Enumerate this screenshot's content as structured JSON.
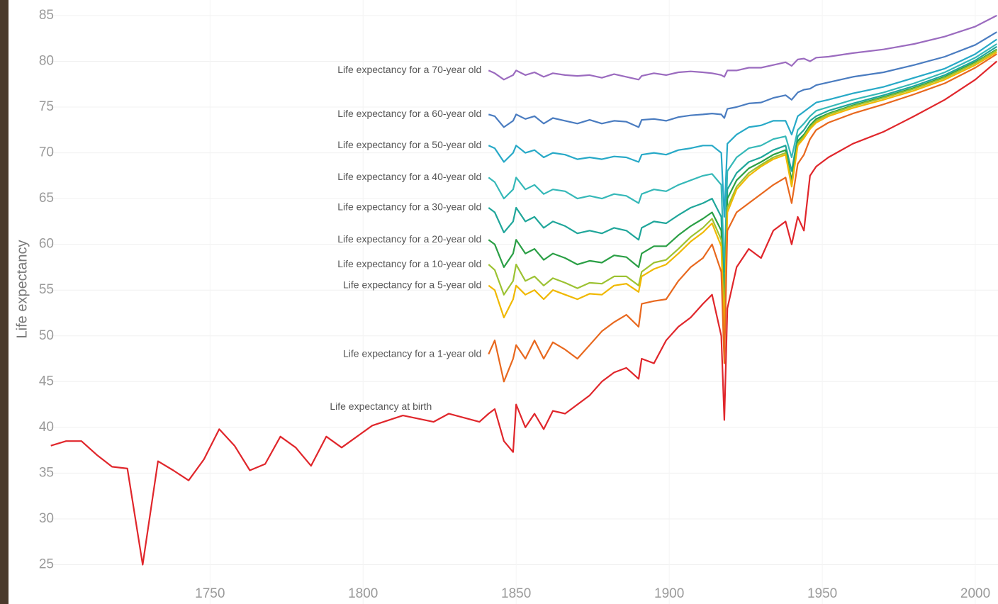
{
  "chart_data": {
    "type": "line",
    "y_label": "Life expectancy",
    "x": [
      1698,
      1703,
      1708,
      1713,
      1718,
      1723,
      1728,
      1733,
      1738,
      1743,
      1748,
      1753,
      1758,
      1763,
      1768,
      1773,
      1778,
      1783,
      1788,
      1793,
      1798,
      1803,
      1813,
      1823,
      1828,
      1838,
      1841,
      1843,
      1846,
      1849,
      1850,
      1853,
      1856,
      1859,
      1862,
      1866,
      1870,
      1874,
      1878,
      1882,
      1886,
      1890,
      1891,
      1895,
      1899,
      1903,
      1907,
      1911,
      1914,
      1917,
      1918,
      1919,
      1922,
      1926,
      1930,
      1934,
      1938,
      1940,
      1942,
      1944,
      1946,
      1948,
      1952,
      1960,
      1970,
      1980,
      1990,
      2000,
      2007
    ],
    "xlim": [
      1697.6,
      2007.4
    ],
    "xticks": [
      1750,
      1800,
      1850,
      1900,
      1950,
      2000
    ],
    "ylim": [
      20.7,
      86.7
    ],
    "yticks": [
      25,
      30,
      35,
      40,
      45,
      50,
      55,
      60,
      65,
      70,
      75,
      80,
      85
    ],
    "grid": true,
    "series": [
      {
        "name": "Life expectancy for a 70-year old",
        "color": "#9b6bbf",
        "values": [
          null,
          null,
          null,
          null,
          null,
          null,
          null,
          null,
          null,
          null,
          null,
          null,
          null,
          null,
          null,
          null,
          null,
          null,
          null,
          null,
          null,
          null,
          null,
          null,
          null,
          null,
          79,
          78.7,
          78,
          78.5,
          79,
          78.5,
          78.8,
          78.3,
          78.7,
          78.5,
          78.4,
          78.5,
          78.2,
          78.6,
          78.3,
          78,
          78.4,
          78.7,
          78.5,
          78.8,
          78.9,
          78.8,
          78.7,
          78.5,
          78.3,
          79,
          79,
          79.3,
          79.3,
          79.6,
          79.9,
          79.5,
          80.2,
          80.3,
          80,
          80.4,
          80.5,
          80.9,
          81.3,
          81.9,
          82.7,
          83.8,
          85
        ]
      },
      {
        "name": "Life expectancy for a 60-year old",
        "color": "#4a7cc0",
        "values": [
          null,
          null,
          null,
          null,
          null,
          null,
          null,
          null,
          null,
          null,
          null,
          null,
          null,
          null,
          null,
          null,
          null,
          null,
          null,
          null,
          null,
          null,
          null,
          null,
          null,
          null,
          74.2,
          74,
          72.8,
          73.5,
          74.2,
          73.7,
          74,
          73.2,
          73.8,
          73.5,
          73.2,
          73.6,
          73.2,
          73.5,
          73.4,
          72.8,
          73.6,
          73.7,
          73.5,
          73.9,
          74.1,
          74.2,
          74.3,
          74.2,
          73.8,
          74.8,
          75,
          75.4,
          75.5,
          76,
          76.3,
          75.8,
          76.6,
          76.9,
          77,
          77.4,
          77.7,
          78.3,
          78.8,
          79.6,
          80.5,
          81.8,
          83.2
        ]
      },
      {
        "name": "Life expectancy for a 50-year old",
        "color": "#27a9c7",
        "values": [
          null,
          null,
          null,
          null,
          null,
          null,
          null,
          null,
          null,
          null,
          null,
          null,
          null,
          null,
          null,
          null,
          null,
          null,
          null,
          null,
          null,
          null,
          null,
          null,
          null,
          null,
          70.8,
          70.5,
          69,
          70,
          70.8,
          70,
          70.3,
          69.5,
          70,
          69.8,
          69.3,
          69.5,
          69.3,
          69.6,
          69.5,
          69,
          69.8,
          70,
          69.8,
          70.3,
          70.5,
          70.8,
          70.8,
          70,
          63,
          71,
          72,
          72.8,
          73,
          73.5,
          73.5,
          72,
          74,
          74.5,
          75,
          75.5,
          75.8,
          76.5,
          77.2,
          78.2,
          79.2,
          80.8,
          82.4
        ]
      },
      {
        "name": "Life expectancy for a 40-year old",
        "color": "#35b8b8",
        "values": [
          null,
          null,
          null,
          null,
          null,
          null,
          null,
          null,
          null,
          null,
          null,
          null,
          null,
          null,
          null,
          null,
          null,
          null,
          null,
          null,
          null,
          null,
          null,
          null,
          null,
          null,
          67.3,
          66.8,
          65,
          66,
          67.3,
          66,
          66.5,
          65.5,
          66,
          65.8,
          65,
          65.3,
          65,
          65.5,
          65.3,
          64.5,
          65.5,
          66,
          65.8,
          66.5,
          67,
          67.5,
          67.7,
          66.5,
          57,
          68,
          69.5,
          70.5,
          70.8,
          71.5,
          71.8,
          69.5,
          72.5,
          73.2,
          74,
          74.6,
          75,
          75.8,
          76.6,
          77.6,
          78.8,
          80.4,
          81.9
        ]
      },
      {
        "name": "Life expectancy for a 30-year old",
        "color": "#1fa69a",
        "values": [
          null,
          null,
          null,
          null,
          null,
          null,
          null,
          null,
          null,
          null,
          null,
          null,
          null,
          null,
          null,
          null,
          null,
          null,
          null,
          null,
          null,
          null,
          null,
          null,
          null,
          null,
          64,
          63.5,
          61.3,
          62.5,
          64,
          62.5,
          63,
          61.8,
          62.5,
          62,
          61.2,
          61.5,
          61.2,
          61.8,
          61.5,
          60.5,
          61.8,
          62.5,
          62.3,
          63.2,
          64,
          64.5,
          65,
          63,
          54,
          66,
          67.8,
          69,
          69.5,
          70.3,
          70.8,
          68,
          71.8,
          72.5,
          73.5,
          74,
          74.6,
          75.4,
          76.3,
          77.3,
          78.5,
          80.1,
          81.6
        ]
      },
      {
        "name": "Life expectancy for a 20-year old",
        "color": "#2a9f45",
        "values": [
          null,
          null,
          null,
          null,
          null,
          null,
          null,
          null,
          null,
          null,
          null,
          null,
          null,
          null,
          null,
          null,
          null,
          null,
          null,
          null,
          null,
          null,
          null,
          null,
          null,
          null,
          60.5,
          60,
          57.5,
          59,
          60.5,
          59,
          59.5,
          58.3,
          59,
          58.5,
          57.8,
          58.2,
          58,
          58.8,
          58.6,
          57.5,
          59,
          59.8,
          59.8,
          61,
          62,
          62.8,
          63.5,
          61.5,
          52,
          65,
          67,
          68.3,
          69,
          69.8,
          70.3,
          67,
          71.3,
          72,
          73,
          73.7,
          74.3,
          75.2,
          76.1,
          77.1,
          78.3,
          79.9,
          81.3
        ]
      },
      {
        "name": "Life expectancy for a 10-year old",
        "color": "#9cc232",
        "values": [
          null,
          null,
          null,
          null,
          null,
          null,
          null,
          null,
          null,
          null,
          null,
          null,
          null,
          null,
          null,
          null,
          null,
          null,
          null,
          null,
          null,
          null,
          null,
          null,
          null,
          null,
          57.8,
          57.2,
          54.5,
          56,
          57.8,
          56,
          56.5,
          55.5,
          56.3,
          55.8,
          55.2,
          55.8,
          55.7,
          56.5,
          56.5,
          55.5,
          57,
          58,
          58.3,
          59.5,
          60.8,
          61.8,
          62.8,
          60.5,
          51,
          64,
          66.3,
          67.8,
          68.7,
          69.5,
          70,
          66.5,
          71,
          71.8,
          72.8,
          73.5,
          74.2,
          75.1,
          76,
          77,
          78.2,
          79.8,
          81.2
        ]
      },
      {
        "name": "Life expectancy for a 5-year old",
        "color": "#f0b800",
        "values": [
          null,
          null,
          null,
          null,
          null,
          null,
          null,
          null,
          null,
          null,
          null,
          null,
          null,
          null,
          null,
          null,
          null,
          null,
          null,
          null,
          null,
          null,
          null,
          null,
          null,
          null,
          55.5,
          55,
          52,
          54,
          55.5,
          54.5,
          55,
          54,
          55,
          54.5,
          54,
          54.6,
          54.5,
          55.5,
          55.7,
          54.8,
          56.5,
          57.3,
          57.8,
          59,
          60.3,
          61.3,
          62.3,
          59.8,
          50,
          63.5,
          66,
          67.5,
          68.5,
          69.3,
          69.8,
          66.3,
          70.8,
          71.6,
          72.6,
          73.3,
          74,
          74.9,
          75.8,
          76.8,
          78,
          79.6,
          81
        ]
      },
      {
        "name": "Life expectancy for a 1-year old",
        "color": "#e8681e",
        "values": [
          null,
          null,
          null,
          null,
          null,
          null,
          null,
          null,
          null,
          null,
          null,
          null,
          null,
          null,
          null,
          null,
          null,
          null,
          null,
          null,
          null,
          null,
          null,
          null,
          null,
          null,
          48,
          49.5,
          45,
          47.5,
          49,
          47.5,
          49.5,
          47.5,
          49.3,
          48.5,
          47.5,
          49,
          50.5,
          51.5,
          52.3,
          51,
          53.5,
          53.8,
          54,
          56,
          57.5,
          58.5,
          60,
          57,
          47,
          61.5,
          63.5,
          64.5,
          65.5,
          66.5,
          67.3,
          64.5,
          68.8,
          69.8,
          71.5,
          72.5,
          73.3,
          74.3,
          75.3,
          76.4,
          77.6,
          79.3,
          80.8
        ]
      },
      {
        "name": "Life expectancy at birth",
        "color": "#e0262b",
        "values": [
          38,
          38.5,
          38.5,
          37,
          35.7,
          35.5,
          25,
          36.3,
          35.3,
          34.2,
          36.5,
          39.8,
          38,
          35.3,
          36,
          39,
          37.8,
          35.8,
          39,
          37.8,
          39,
          40.2,
          41.3,
          40.6,
          41.5,
          40.6,
          41.5,
          42,
          38.5,
          37.3,
          42.5,
          40,
          41.5,
          39.8,
          41.8,
          41.5,
          42.5,
          43.5,
          45,
          46,
          46.5,
          45.3,
          47.5,
          47,
          49.5,
          51,
          52,
          53.5,
          54.5,
          50,
          40.8,
          53,
          57.5,
          59.5,
          58.5,
          61.5,
          62.5,
          60,
          63,
          61.5,
          67.5,
          68.5,
          69.5,
          71,
          72.3,
          74,
          75.8,
          78,
          80
        ]
      }
    ]
  }
}
